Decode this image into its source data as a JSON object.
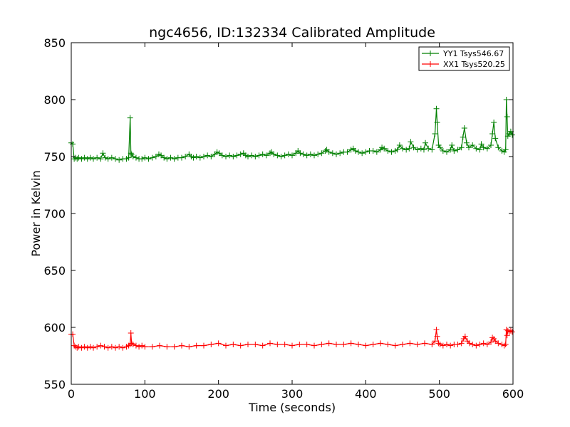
{
  "chart_data": {
    "type": "line",
    "title": "ngc4656, ID:132334 Calibrated Amplitude",
    "xlabel": "Time (seconds)",
    "ylabel": "Power in Kelvin",
    "xlim": [
      0,
      600
    ],
    "ylim": [
      550,
      850
    ],
    "xticks": [
      0,
      100,
      200,
      300,
      400,
      500,
      600
    ],
    "yticks": [
      550,
      600,
      650,
      700,
      750,
      800,
      850
    ],
    "xtick_labels": [
      "0",
      "100",
      "200",
      "300",
      "400",
      "500",
      "600"
    ],
    "ytick_labels": [
      "550",
      "600",
      "650",
      "700",
      "750",
      "800",
      "850"
    ],
    "grid": false,
    "legend_position": "top-right",
    "marker": "+",
    "series": [
      {
        "name": "YY1 Tsys546.67",
        "color": "#008000",
        "x": [
          0,
          2,
          4,
          6,
          8,
          10,
          14,
          18,
          22,
          26,
          30,
          35,
          40,
          43,
          46,
          50,
          55,
          60,
          65,
          70,
          75,
          78,
          80,
          81,
          82,
          84,
          88,
          92,
          96,
          100,
          105,
          110,
          115,
          119,
          122,
          126,
          130,
          135,
          140,
          145,
          150,
          155,
          160,
          163,
          166,
          170,
          175,
          180,
          185,
          190,
          195,
          198,
          201,
          205,
          210,
          215,
          220,
          225,
          230,
          234,
          237,
          240,
          245,
          250,
          255,
          260,
          265,
          270,
          272,
          275,
          280,
          285,
          290,
          295,
          300,
          305,
          308,
          311,
          315,
          320,
          325,
          330,
          335,
          340,
          345,
          347,
          350,
          355,
          360,
          365,
          370,
          375,
          380,
          383,
          386,
          390,
          395,
          400,
          405,
          410,
          415,
          420,
          422,
          425,
          430,
          435,
          440,
          443,
          446,
          450,
          455,
          459,
          461,
          465,
          470,
          475,
          479,
          481,
          485,
          490,
          494,
          496,
          497,
          499,
          501,
          505,
          510,
          515,
          517,
          520,
          525,
          530,
          532,
          534,
          537,
          540,
          545,
          550,
          555,
          557,
          560,
          565,
          570,
          572,
          574,
          576,
          580,
          585,
          588,
          590,
          591,
          592,
          593,
          595,
          597,
          599
        ],
        "y": [
          762,
          761,
          748,
          749,
          748,
          749,
          748,
          749,
          748,
          749,
          748,
          749,
          748,
          753,
          749,
          748,
          749,
          748,
          747,
          748,
          748,
          749,
          784,
          753,
          752,
          750,
          749,
          748,
          748,
          749,
          748,
          749,
          750,
          752,
          751,
          749,
          748,
          749,
          748,
          749,
          749,
          750,
          752,
          750,
          749,
          750,
          749,
          750,
          751,
          750,
          752,
          754,
          753,
          751,
          750,
          751,
          750,
          751,
          752,
          753,
          751,
          750,
          751,
          750,
          751,
          752,
          751,
          753,
          754,
          752,
          751,
          750,
          751,
          752,
          751,
          753,
          755,
          753,
          752,
          751,
          752,
          751,
          752,
          753,
          755,
          756,
          754,
          753,
          752,
          753,
          754,
          754,
          756,
          757,
          755,
          754,
          753,
          754,
          755,
          755,
          754,
          756,
          758,
          757,
          755,
          754,
          755,
          756,
          760,
          757,
          756,
          757,
          763,
          758,
          756,
          757,
          756,
          762,
          757,
          756,
          770,
          792,
          780,
          760,
          758,
          755,
          754,
          756,
          760,
          755,
          756,
          758,
          767,
          775,
          762,
          758,
          760,
          757,
          756,
          761,
          758,
          757,
          760,
          770,
          780,
          766,
          758,
          755,
          754,
          756,
          800,
          785,
          768,
          770,
          772,
          769
        ]
      },
      {
        "name": "XX1 Tsys520.25",
        "color": "#ff0000",
        "x": [
          0,
          2,
          4,
          6,
          8,
          10,
          14,
          18,
          22,
          26,
          30,
          35,
          40,
          45,
          50,
          55,
          60,
          65,
          70,
          75,
          78,
          80,
          81,
          82,
          84,
          88,
          92,
          96,
          100,
          110,
          120,
          130,
          140,
          150,
          160,
          170,
          180,
          190,
          200,
          210,
          220,
          230,
          240,
          250,
          260,
          270,
          280,
          290,
          300,
          310,
          320,
          330,
          340,
          350,
          360,
          370,
          380,
          390,
          400,
          410,
          420,
          430,
          440,
          450,
          460,
          470,
          480,
          490,
          494,
          496,
          497,
          499,
          501,
          505,
          510,
          515,
          520,
          525,
          530,
          533,
          535,
          538,
          541,
          545,
          550,
          555,
          560,
          565,
          570,
          572,
          574,
          576,
          580,
          585,
          588,
          590,
          591,
          592,
          593,
          595,
          597,
          599
        ],
        "y": [
          594,
          594,
          584,
          583,
          582,
          583,
          582,
          583,
          582,
          583,
          582,
          583,
          584,
          583,
          582,
          583,
          582,
          583,
          582,
          583,
          584,
          585,
          595,
          586,
          585,
          584,
          583,
          584,
          583,
          583,
          584,
          583,
          583,
          584,
          583,
          584,
          584,
          585,
          586,
          584,
          585,
          584,
          585,
          585,
          584,
          586,
          585,
          585,
          584,
          585,
          585,
          584,
          585,
          586,
          585,
          585,
          586,
          585,
          584,
          585,
          586,
          585,
          584,
          585,
          586,
          585,
          586,
          585,
          588,
          598,
          592,
          586,
          585,
          584,
          585,
          584,
          585,
          585,
          586,
          590,
          592,
          588,
          586,
          585,
          584,
          585,
          586,
          585,
          587,
          591,
          590,
          588,
          586,
          585,
          584,
          585,
          598,
          593,
          597,
          596,
          597,
          596
        ]
      }
    ]
  }
}
